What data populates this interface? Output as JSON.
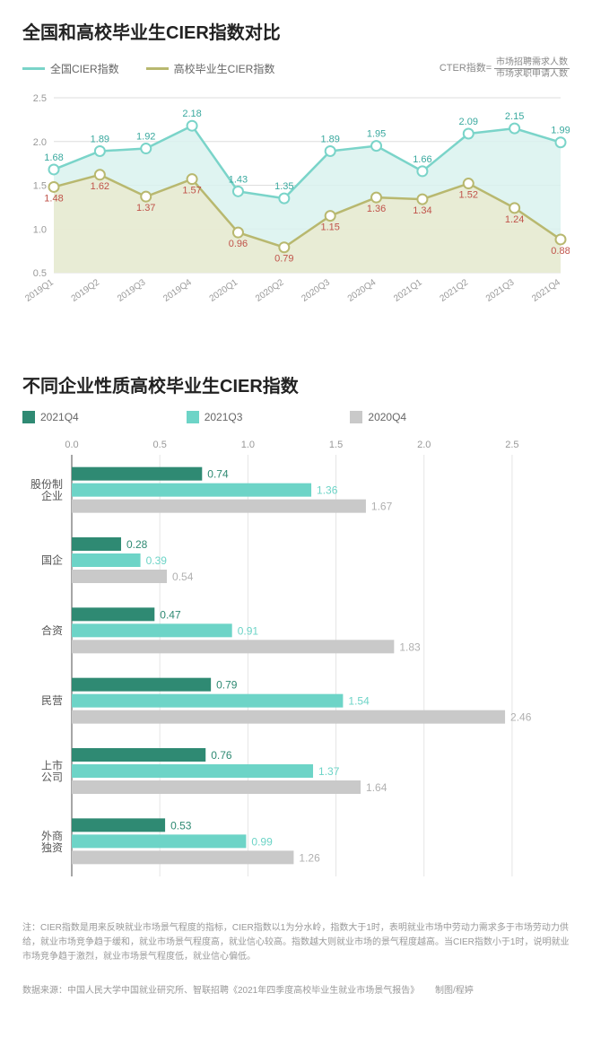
{
  "chart1": {
    "title": "全国和高校毕业生CIER指数对比",
    "legend": [
      {
        "label": "全国CIER指数",
        "color": "#7ad4c9"
      },
      {
        "label": "高校毕业生CIER指数",
        "color": "#b8b86f"
      }
    ],
    "formula_label": "CTER指数=",
    "formula_top": "市场招聘需求人数",
    "formula_bottom": "市场求职申请人数",
    "x_labels": [
      "2019Q1",
      "2019Q2",
      "2019Q3",
      "2019Q4",
      "2020Q1",
      "2020Q2",
      "2020Q3",
      "2020Q4",
      "2021Q1",
      "2021Q2",
      "2021Q3",
      "2021Q4"
    ],
    "y_min": 0.5,
    "y_max": 2.5,
    "y_ticks": [
      0.5,
      1.0,
      1.5,
      2.0,
      2.5
    ],
    "series": [
      {
        "name": "national",
        "color": "#7ad4c9",
        "fill": "#d9f2ee",
        "values": [
          1.68,
          1.89,
          1.92,
          2.18,
          1.43,
          1.35,
          1.89,
          1.95,
          1.66,
          2.09,
          2.15,
          1.99
        ],
        "label_color": "#3aa99f"
      },
      {
        "name": "graduate",
        "color": "#b8b86f",
        "fill": "#eaead0",
        "values": [
          1.48,
          1.62,
          1.37,
          1.57,
          0.96,
          0.79,
          1.15,
          1.36,
          1.34,
          1.52,
          1.24,
          0.88
        ],
        "label_color": "#c0534a"
      }
    ],
    "grid_color": "#dddddd"
  },
  "chart2": {
    "title": "不同企业性质高校毕业生CIER指数",
    "legend": [
      {
        "label": "2021Q4",
        "color": "#2f8a73"
      },
      {
        "label": "2021Q3",
        "color": "#6dd4c7"
      },
      {
        "label": "2020Q4",
        "color": "#c9c9c9"
      }
    ],
    "x_min": 0.0,
    "x_max": 2.75,
    "x_ticks": [
      0.0,
      0.5,
      1.0,
      1.5,
      2.0,
      2.5
    ],
    "categories": [
      {
        "label": "股份制\n企业",
        "values": [
          0.74,
          1.36,
          1.67
        ]
      },
      {
        "label": "国企",
        "values": [
          0.28,
          0.39,
          0.54
        ]
      },
      {
        "label": "合资",
        "values": [
          0.47,
          0.91,
          1.83
        ]
      },
      {
        "label": "民营",
        "values": [
          0.79,
          1.54,
          2.46
        ]
      },
      {
        "label": "上市\n公司",
        "values": [
          0.76,
          1.37,
          1.64
        ]
      },
      {
        "label": "外商\n独资",
        "values": [
          0.53,
          0.99,
          1.26
        ]
      }
    ],
    "value_colors": [
      "#2f8a73",
      "#6dd4c7",
      "#b0b0b0"
    ],
    "grid_color": "#e5e5e5"
  },
  "footnote_label": "注：",
  "footnote": "CIER指数是用来反映就业市场景气程度的指标，CIER指数以1为分水岭，指数大于1时，表明就业市场中劳动力需求多于市场劳动力供给，就业市场竞争趋于缓和，就业市场景气程度高，就业信心较高。指数越大则就业市场的景气程度越高。当CIER指数小于1时，说明就业市场竞争趋于激烈，就业市场景气程度低，就业信心偏低。",
  "source_label": "数据来源：",
  "source": "中国人民大学中国就业研究所、智联招聘《2021年四季度高校毕业生就业市场景气报告》",
  "credit": "制图/程婷"
}
